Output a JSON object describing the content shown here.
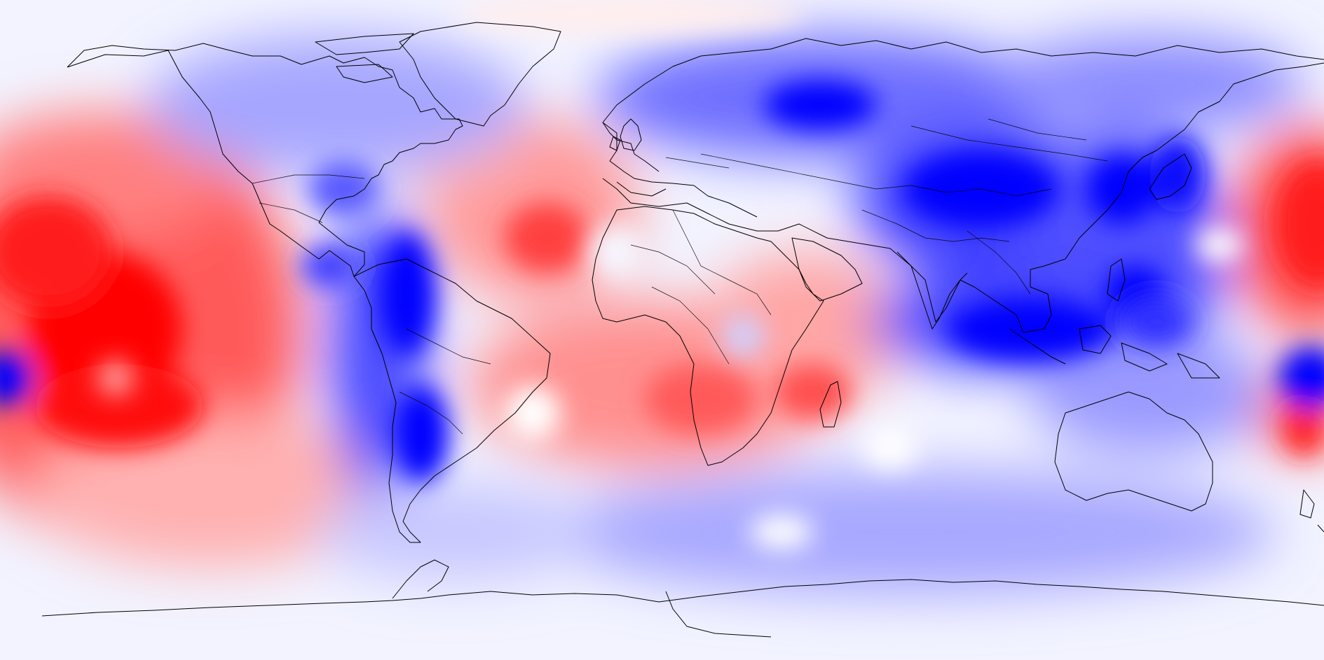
{
  "map": {
    "projection": "equirectangular",
    "extent": {
      "lon": [
        -180,
        180
      ],
      "lat": [
        -90,
        90
      ]
    },
    "colormap": {
      "negative": "#0000ff",
      "neutral": "#f2f3ff",
      "positive": "#ff0000"
    },
    "coastline_color": "#000000",
    "show_country_borders": true,
    "legend": "none",
    "anomaly_regions": [
      {
        "name": "central-pacific-warm",
        "sign": "positive",
        "center_lon": -165,
        "center_lat": -5
      },
      {
        "name": "north-pacific-warm",
        "sign": "positive",
        "center_lon": -160,
        "center_lat": 25
      },
      {
        "name": "south-pacific-warm",
        "sign": "positive",
        "center_lon": -150,
        "center_lat": -55
      },
      {
        "name": "south-america-west-cold",
        "sign": "negative",
        "center_lon": -76,
        "center_lat": -10
      },
      {
        "name": "patagonia-cold",
        "sign": "negative",
        "center_lon": -70,
        "center_lat": -40
      },
      {
        "name": "north-atlantic-warm",
        "sign": "positive",
        "center_lon": -25,
        "center_lat": 15
      },
      {
        "name": "south-atlantic-warm",
        "sign": "positive",
        "center_lon": 0,
        "center_lat": -35
      },
      {
        "name": "southern-africa-warm",
        "sign": "positive",
        "center_lon": 40,
        "center_lat": -35
      },
      {
        "name": "siberia-cold",
        "sign": "negative",
        "center_lon": 65,
        "center_lat": 60
      },
      {
        "name": "tibet-cold",
        "sign": "negative",
        "center_lon": 85,
        "center_lat": 33
      },
      {
        "name": "maritime-continent-cold",
        "sign": "negative",
        "center_lon": 120,
        "center_lat": -5
      },
      {
        "name": "japan-cold",
        "sign": "negative",
        "center_lon": 135,
        "center_lat": 30
      },
      {
        "name": "philippine-sea-cold",
        "sign": "negative",
        "center_lon": 133,
        "center_lat": 12
      },
      {
        "name": "southwest-pacific-cold",
        "sign": "negative",
        "center_lon": 175,
        "center_lat": -25
      },
      {
        "name": "northeast-pacific-warm",
        "sign": "positive",
        "center_lon": 175,
        "center_lat": 18
      },
      {
        "name": "antarctic-cold",
        "sign": "negative",
        "center_lon": 60,
        "center_lat": -78
      },
      {
        "name": "arctic-canada-cold",
        "sign": "negative",
        "center_lon": -95,
        "center_lat": 65
      }
    ]
  }
}
